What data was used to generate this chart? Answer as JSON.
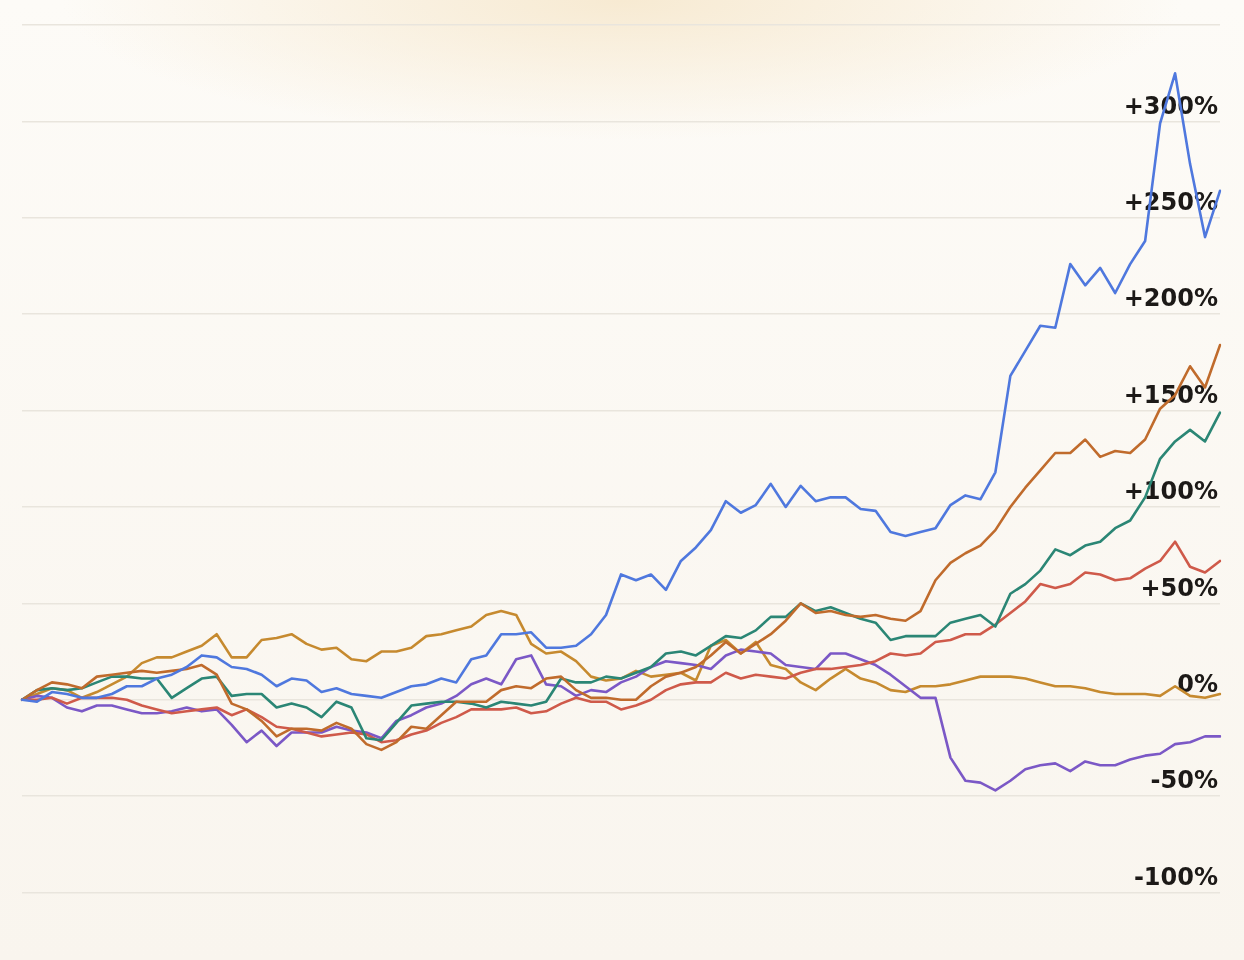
{
  "chart_data": {
    "type": "line",
    "categories": [
      null,
      null,
      null,
      null,
      null,
      null,
      null,
      null,
      null,
      null,
      null,
      null,
      null,
      null,
      null,
      null,
      null,
      null,
      null,
      null,
      null,
      null,
      null,
      null,
      null,
      null,
      null,
      null,
      null,
      null,
      null,
      null,
      null,
      null,
      null,
      null,
      null,
      null,
      null,
      null,
      null,
      null,
      null,
      null,
      null,
      null,
      null,
      null,
      null,
      null,
      null,
      null,
      null,
      null,
      null,
      null,
      null,
      null,
      null,
      null,
      null,
      null,
      null,
      null,
      null,
      null,
      null,
      null,
      null,
      null,
      null,
      null,
      null,
      null,
      null,
      null,
      null,
      null,
      null,
      null,
      null
    ],
    "series": [
      {
        "color": "#4f78de",
        "values": [
          0,
          -1,
          4,
          3,
          1,
          1,
          3,
          7,
          7,
          11,
          13,
          17,
          23,
          22,
          17,
          16,
          13,
          7,
          11,
          10,
          4,
          6,
          3,
          2,
          1,
          4,
          7,
          8,
          11,
          9,
          21,
          23,
          34,
          34,
          35,
          27,
          27,
          28,
          34,
          44,
          65,
          62,
          65,
          57,
          72,
          79,
          88,
          103,
          97,
          101,
          112,
          100,
          111,
          103,
          105,
          105,
          99,
          98,
          87,
          85,
          87,
          89,
          101,
          106,
          104,
          118,
          168,
          181,
          194,
          193,
          226,
          215,
          224,
          211,
          226,
          238,
          299,
          325,
          278,
          240,
          264
        ]
      },
      {
        "color": "#c06b2c",
        "values": [
          0,
          5,
          9,
          8,
          6,
          12,
          13,
          14,
          15,
          14,
          15,
          16,
          18,
          13,
          -2,
          -5,
          -11,
          -19,
          -15,
          -15,
          -16,
          -12,
          -15,
          -23,
          -26,
          -22,
          -14,
          -15,
          -8,
          -1,
          -1,
          -1,
          5,
          7,
          6,
          11,
          12,
          5,
          1,
          1,
          0,
          0,
          7,
          12,
          14,
          17,
          23,
          30,
          24,
          29,
          34,
          41,
          50,
          45,
          46,
          44,
          43,
          44,
          42,
          41,
          46,
          62,
          71,
          76,
          80,
          88,
          100,
          110,
          119,
          128,
          128,
          135,
          126,
          129,
          128,
          135,
          151,
          158,
          173,
          162,
          184
        ]
      },
      {
        "color": "#2b8675",
        "values": [
          0,
          5,
          6,
          5,
          6,
          9,
          12,
          12,
          11,
          11,
          1,
          6,
          11,
          12,
          2,
          3,
          3,
          -4,
          -2,
          -4,
          -9,
          -1,
          -4,
          -20,
          -21,
          -12,
          -3,
          -2,
          -1,
          -1,
          -2,
          -4,
          -1,
          -2,
          -3,
          -1,
          11,
          9,
          9,
          12,
          11,
          14,
          17,
          24,
          25,
          23,
          28,
          33,
          32,
          36,
          43,
          43,
          50,
          46,
          48,
          45,
          42,
          40,
          31,
          33,
          33,
          33,
          40,
          42,
          44,
          38,
          55,
          60,
          67,
          78,
          75,
          80,
          82,
          89,
          93,
          105,
          125,
          134,
          140,
          134,
          149
        ]
      },
      {
        "color": "#cf5a4a",
        "values": [
          0,
          0,
          1,
          -2,
          1,
          1,
          1,
          0,
          -3,
          -5,
          -7,
          -6,
          -5,
          -4,
          -8,
          -5,
          -9,
          -14,
          -15,
          -17,
          -19,
          -18,
          -17,
          -18,
          -22,
          -21,
          -18,
          -16,
          -12,
          -9,
          -5,
          -5,
          -5,
          -4,
          -7,
          -6,
          -2,
          1,
          -1,
          -1,
          -5,
          -3,
          0,
          5,
          8,
          9,
          9,
          14,
          11,
          13,
          12,
          11,
          14,
          16,
          16,
          17,
          18,
          20,
          24,
          23,
          24,
          30,
          31,
          34,
          34,
          39,
          45,
          51,
          60,
          58,
          60,
          66,
          65,
          62,
          63,
          68,
          72,
          82,
          69,
          66,
          72
        ]
      },
      {
        "color": "#7b58c6",
        "values": [
          0,
          2,
          1,
          -4,
          -6,
          -3,
          -3,
          -5,
          -7,
          -7,
          -6,
          -4,
          -6,
          -5,
          -13,
          -22,
          -16,
          -24,
          -17,
          -17,
          -17,
          -14,
          -16,
          -17,
          -20,
          -11,
          -8,
          -4,
          -2,
          2,
          8,
          11,
          8,
          21,
          23,
          8,
          7,
          2,
          5,
          4,
          9,
          12,
          17,
          20,
          19,
          18,
          16,
          23,
          26,
          25,
          24,
          18,
          17,
          16,
          24,
          24,
          21,
          18,
          13,
          7,
          1,
          1,
          -30,
          -42,
          -43,
          -47,
          -42,
          -36,
          -34,
          -33,
          -37,
          -32,
          -34,
          -34,
          -31,
          -29,
          -28,
          -23,
          -22,
          -19,
          -19
        ]
      },
      {
        "color": "#c68a2f",
        "values": [
          0,
          3,
          6,
          5,
          1,
          4,
          8,
          12,
          19,
          22,
          22,
          25,
          28,
          34,
          22,
          22,
          31,
          32,
          34,
          29,
          26,
          27,
          21,
          20,
          25,
          25,
          27,
          33,
          34,
          36,
          38,
          44,
          46,
          44,
          29,
          24,
          25,
          20,
          12,
          10,
          11,
          15,
          12,
          13,
          14,
          10,
          28,
          31,
          24,
          30,
          18,
          16,
          9,
          5,
          11,
          16,
          11,
          9,
          5,
          4,
          7,
          7,
          8,
          10,
          12,
          12,
          12,
          11,
          9,
          7,
          7,
          6,
          4,
          3,
          3,
          3,
          2,
          7,
          2,
          1,
          3
        ]
      }
    ],
    "ylim": [
      -135,
      363
    ],
    "yticks": [
      {
        "value": -100,
        "label": "-100%"
      },
      {
        "value": -50,
        "label": "-50%"
      },
      {
        "value": 0,
        "label": "0%"
      },
      {
        "value": 50,
        "label": "+50%"
      },
      {
        "value": 100,
        "label": "+100%"
      },
      {
        "value": 150,
        "label": "+150%"
      },
      {
        "value": 200,
        "label": "+200%"
      },
      {
        "value": 250,
        "label": "+250%"
      },
      {
        "value": 300,
        "label": "+300%"
      },
      {
        "value": 350,
        "label": null
      }
    ],
    "grid": "y",
    "tick_labels": "y",
    "marker": "none"
  }
}
